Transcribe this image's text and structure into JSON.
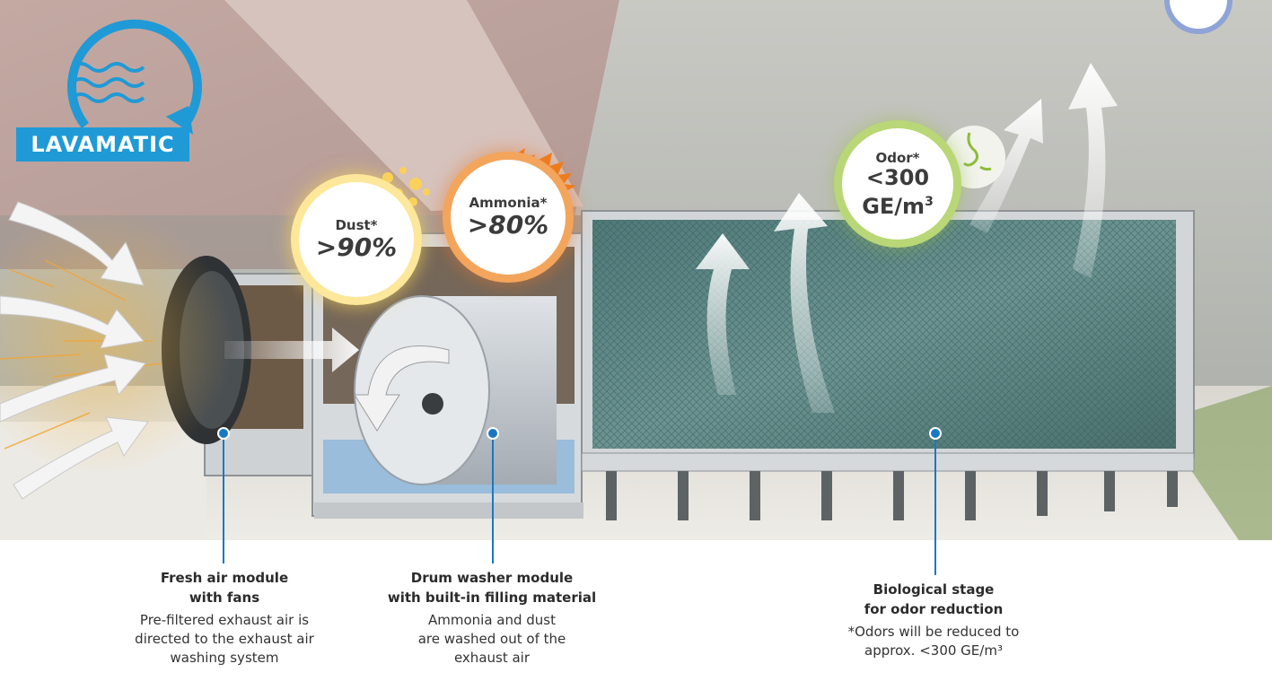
{
  "logo": {
    "text": "LAVAMATIC",
    "icon": "water-waves-circle-arrow-icon",
    "color": "#1f9ad6"
  },
  "badges": {
    "dust": {
      "label": "Dust*",
      "value": ">90%",
      "color": "#f7d34a"
    },
    "ammonia": {
      "label": "Ammonia*",
      "value": ">80%",
      "color": "#ec7a1f"
    },
    "odor": {
      "label": "Odor*",
      "value_line1": "<300",
      "value_line2": "GE/m",
      "value_sup": "3",
      "icon": "nose-icon",
      "color": "#8fbc3a"
    }
  },
  "labels": {
    "fresh": {
      "title_line1": "Fresh air module",
      "title_line2": "with fans",
      "desc_line1": "Pre-filtered exhaust air is",
      "desc_line2": "directed to the exhaust air",
      "desc_line3": "washing system"
    },
    "drum": {
      "title_line1": "Drum washer module",
      "title_line2": "with built-in filling material",
      "desc_line1": "Ammonia and dust",
      "desc_line2": "are washed out of the",
      "desc_line3": "exhaust air"
    },
    "bio": {
      "title_line1": "Biological stage",
      "title_line2": "for odor reduction",
      "desc_line1": "*Odors will be reduced to",
      "desc_line2": "approx. <300 GE/m³"
    }
  },
  "colors": {
    "pointer": "#1a78c2",
    "accent": "#1f9ad6"
  }
}
